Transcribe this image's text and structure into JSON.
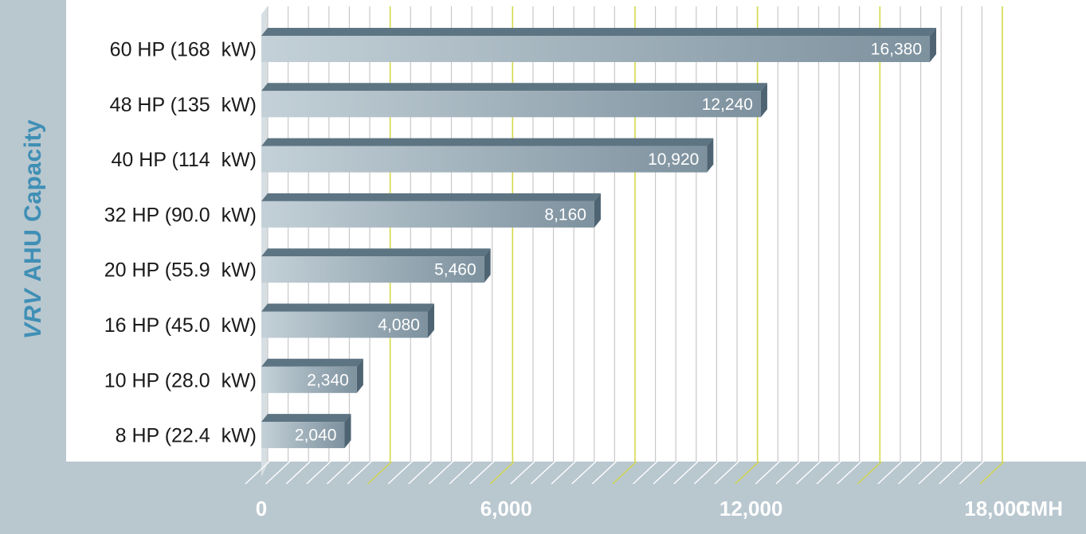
{
  "chart_data": {
    "type": "bar",
    "orientation": "horizontal",
    "ylabel_italic": "VRV",
    "ylabel_rest": "AHU Capacity",
    "x_unit": "CMH",
    "xlim": [
      0,
      18000
    ],
    "xticks": [
      "0",
      "6,000",
      "12,000",
      "18,000"
    ],
    "xtick_values": [
      0,
      6000,
      12000,
      18000
    ],
    "grid": true,
    "categories": [
      "60 HP (168  kW)",
      "48 HP (135  kW)",
      "40 HP (114  kW)",
      "32 HP (90.0  kW)",
      "20 HP (55.9  kW)",
      "16 HP (45.0  kW)",
      "10 HP (28.0  kW)",
      "8 HP (22.4  kW)"
    ],
    "values": [
      16380,
      12240,
      10920,
      8160,
      5460,
      4080,
      2340,
      2040
    ],
    "value_labels": [
      "16,380",
      "12,240",
      "10,920",
      "8,160",
      "5,460",
      "4,080",
      "2,340",
      "2,040"
    ],
    "colors": {
      "band": "#b9c7cf",
      "bar_light": "#c4d1d8",
      "bar_dark": "#7d919e",
      "bar_top": "#5d7482",
      "bar_end": "#4e6472",
      "grid": "#c8c8c8",
      "grid_major": "#d4d94a",
      "title": "#3f8fb5"
    }
  }
}
